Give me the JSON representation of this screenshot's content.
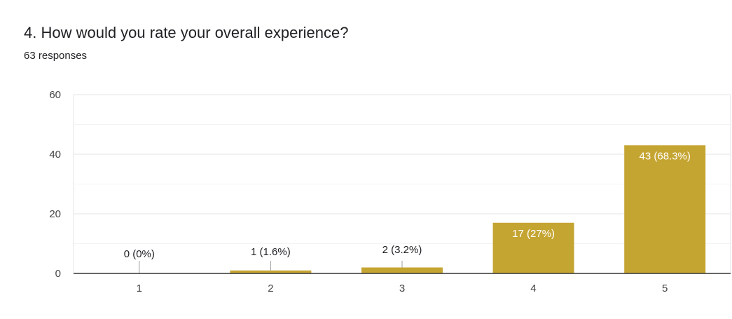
{
  "question": {
    "title": "4. How would you rate your overall experience?",
    "responses": "63 responses"
  },
  "chart_data": {
    "type": "bar",
    "categories": [
      "1",
      "2",
      "3",
      "4",
      "5"
    ],
    "values": [
      0,
      1,
      2,
      17,
      43
    ],
    "data_labels": [
      "0 (0%)",
      "1 (1.6%)",
      "2 (3.2%)",
      "17 (27%)",
      "43 (68.3%)"
    ],
    "ylim": [
      0,
      60
    ],
    "yticks": [
      0,
      20,
      40,
      60
    ],
    "minor_grid": [
      10,
      30,
      50
    ],
    "grid": true,
    "bar_color": "#c5a532",
    "title": "",
    "xlabel": "",
    "ylabel": ""
  }
}
